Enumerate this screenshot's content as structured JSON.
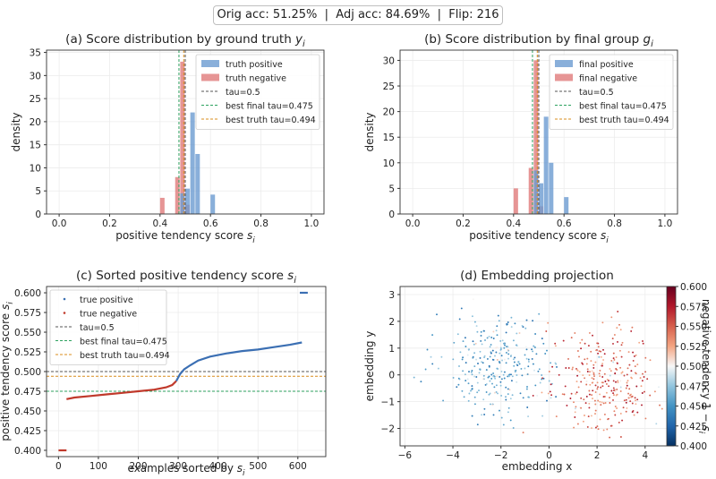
{
  "header": {
    "summary": "Orig acc: 51.25%  |  Adj acc: 84.69%  |  Flip: 216"
  },
  "colors": {
    "positive": "#6b9bd1",
    "negative": "#e07b7b",
    "tau": "#555555",
    "best_final": "#2ca25f",
    "best_truth": "#d98c1c",
    "line_positive": "#3b6fb3",
    "line_negative": "#c0392b"
  },
  "chart_data": [
    {
      "id": "a",
      "type": "bar",
      "title": "(a) Score distribution by ground truth y_i",
      "title_main": "(a) Score distribution by ground truth ",
      "title_var": "y",
      "title_sub": "i",
      "xlabel_main": "positive tendency score ",
      "xlabel_var": "s",
      "xlabel_sub": "i",
      "ylabel": "density",
      "xlim": [
        -0.05,
        1.05
      ],
      "ylim": [
        0,
        35.5
      ],
      "xticks": [
        "0.0",
        "0.2",
        "0.4",
        "0.6",
        "0.8",
        "1.0"
      ],
      "yticks": [
        "0",
        "5",
        "10",
        "15",
        "20",
        "25",
        "30",
        "35"
      ],
      "bin_width": 0.02,
      "series": [
        {
          "name": "truth positive",
          "color": "#6b9bd1",
          "bins": [
            [
              0.48,
              4.5
            ],
            [
              0.5,
              5.5
            ],
            [
              0.52,
              22.0
            ],
            [
              0.54,
              13.0
            ],
            [
              0.6,
              4.2
            ]
          ]
        },
        {
          "name": "truth negative",
          "color": "#e07b7b",
          "bins": [
            [
              0.4,
              3.5
            ],
            [
              0.46,
              8.0
            ],
            [
              0.48,
              33.0
            ],
            [
              0.5,
              2.0
            ]
          ]
        }
      ],
      "vlines": [
        {
          "name": "tau=0.5",
          "x": 0.5,
          "color": "#555555"
        },
        {
          "name": "best final tau=0.475",
          "x": 0.475,
          "color": "#2ca25f"
        },
        {
          "name": "best truth tau=0.494",
          "x": 0.494,
          "color": "#d98c1c"
        }
      ],
      "legend": "top-right"
    },
    {
      "id": "b",
      "type": "bar",
      "title": "(b) Score distribution by final group g_i",
      "title_main": "(b) Score distribution by final group ",
      "title_var": "g",
      "title_sub": "i",
      "xlabel_main": "positive tendency score ",
      "xlabel_var": "s",
      "xlabel_sub": "i",
      "ylabel": "density",
      "xlim": [
        -0.05,
        1.05
      ],
      "ylim": [
        0,
        32
      ],
      "xticks": [
        "0.0",
        "0.2",
        "0.4",
        "0.6",
        "0.8",
        "1.0"
      ],
      "yticks": [
        "0",
        "5",
        "10",
        "15",
        "20",
        "25",
        "30"
      ],
      "bin_width": 0.02,
      "series": [
        {
          "name": "final positive",
          "color": "#6b9bd1",
          "bins": [
            [
              0.48,
              8.5
            ],
            [
              0.5,
              6.0
            ],
            [
              0.52,
              19.0
            ],
            [
              0.54,
              10.0
            ],
            [
              0.6,
              3.3
            ]
          ]
        },
        {
          "name": "final negative",
          "color": "#e07b7b",
          "bins": [
            [
              0.4,
              5.0
            ],
            [
              0.46,
              9.0
            ],
            [
              0.48,
              30.0
            ],
            [
              0.5,
              1.5
            ]
          ]
        }
      ],
      "vlines": [
        {
          "name": "tau=0.5",
          "x": 0.5,
          "color": "#555555"
        },
        {
          "name": "best final tau=0.475",
          "x": 0.475,
          "color": "#2ca25f"
        },
        {
          "name": "best truth tau=0.494",
          "x": 0.494,
          "color": "#d98c1c"
        }
      ],
      "legend": "top-right"
    },
    {
      "id": "c",
      "type": "line",
      "title_main": "(c) Sorted positive tendency score ",
      "title_var": "s",
      "title_sub": "i",
      "xlabel_main": "examples sorted by ",
      "xlabel_var": "s",
      "xlabel_sub": "i",
      "ylabel_main": "positive tendency score ",
      "ylabel_var": "s",
      "ylabel_sub": "i",
      "xlim": [
        -30,
        670
      ],
      "ylim": [
        0.392,
        0.608
      ],
      "xticks": [
        0,
        100,
        200,
        300,
        400,
        500,
        600
      ],
      "yticks": [
        "0.400",
        "0.425",
        "0.450",
        "0.475",
        "0.500",
        "0.525",
        "0.550",
        "0.575",
        "0.600"
      ],
      "series": [
        {
          "name": "true positive",
          "color": "#3b6fb3",
          "segments": [
            [
              [
                295,
                0.488
              ],
              [
                305,
                0.497
              ],
              [
                315,
                0.503
              ],
              [
                330,
                0.508
              ],
              [
                350,
                0.514
              ],
              [
                380,
                0.519
              ],
              [
                420,
                0.523
              ],
              [
                460,
                0.526
              ],
              [
                500,
                0.528
              ],
              [
                540,
                0.531
              ],
              [
                580,
                0.534
              ],
              [
                610,
                0.537
              ]
            ],
            [
              [
                605,
                0.6
              ],
              [
                625,
                0.6
              ]
            ]
          ]
        },
        {
          "name": "true negative",
          "color": "#c0392b",
          "segments": [
            [
              [
                0,
                0.4
              ],
              [
                20,
                0.4
              ]
            ],
            [
              [
                20,
                0.465
              ],
              [
                40,
                0.467
              ],
              [
                80,
                0.469
              ],
              [
                120,
                0.471
              ],
              [
                160,
                0.473
              ],
              [
                200,
                0.475
              ],
              [
                240,
                0.477
              ],
              [
                270,
                0.48
              ],
              [
                285,
                0.483
              ],
              [
                295,
                0.488
              ]
            ]
          ]
        }
      ],
      "hlines": [
        {
          "name": "tau=0.5",
          "y": 0.5,
          "color": "#555555"
        },
        {
          "name": "best final tau=0.475",
          "y": 0.475,
          "color": "#2ca25f"
        },
        {
          "name": "best truth tau=0.494",
          "y": 0.494,
          "color": "#d98c1c"
        }
      ],
      "legend": "top-left"
    },
    {
      "id": "d",
      "type": "scatter",
      "title": "(d) Embedding projection",
      "xlabel": "embedding x",
      "ylabel": "embedding y",
      "xlim": [
        -6.2,
        5.2
      ],
      "ylim": [
        -2.65,
        3.3
      ],
      "xticks": [
        -6,
        -4,
        -2,
        0,
        2,
        4
      ],
      "yticks": [
        -2,
        -1,
        0,
        1,
        2,
        3
      ],
      "clusters": [
        {
          "name": "left cluster",
          "center": [
            -2.2,
            0.3
          ],
          "spread": [
            1.1,
            0.95
          ],
          "count": 300,
          "value_range": [
            0.43,
            0.48
          ]
        },
        {
          "name": "right cluster",
          "center": [
            2.3,
            -0.2
          ],
          "spread": [
            1.1,
            0.95
          ],
          "count": 300,
          "value_range": [
            0.52,
            0.58
          ]
        }
      ],
      "colorbar": {
        "label_main": "negative tendency 1 − ",
        "label_var": "s",
        "label_sub": "i",
        "min": 0.4,
        "max": 0.6,
        "ticks": [
          "0.400",
          "0.425",
          "0.450",
          "0.475",
          "0.500",
          "0.525",
          "0.550",
          "0.575",
          "0.600"
        ]
      }
    }
  ]
}
